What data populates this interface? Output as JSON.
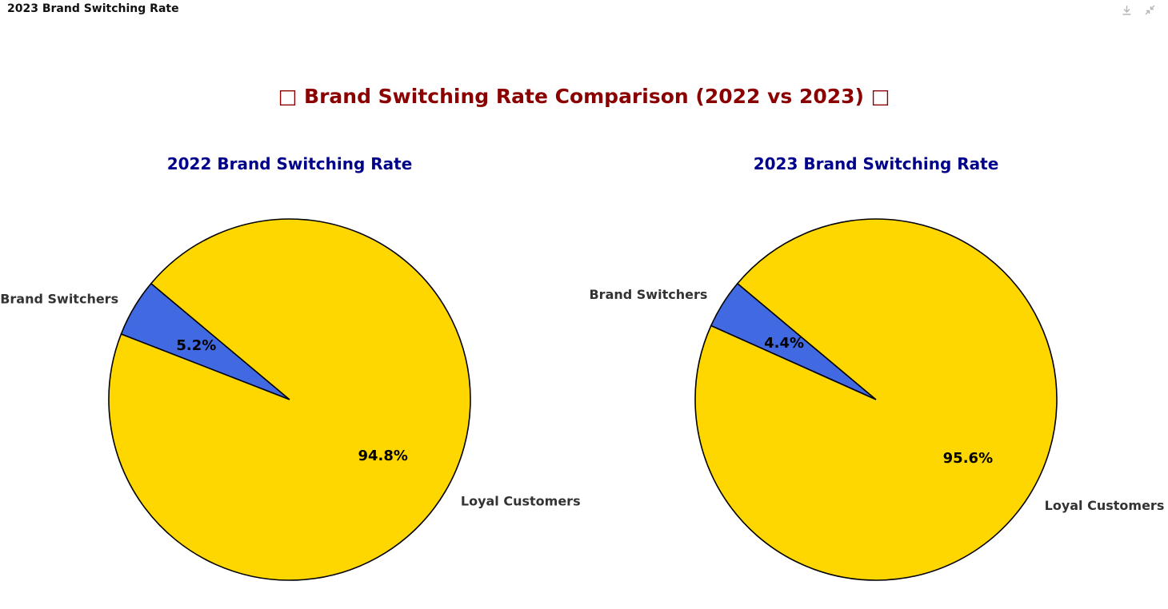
{
  "window": {
    "title": "2023 Brand Switching Rate",
    "tools": [
      {
        "name": "download-icon"
      },
      {
        "name": "collapse-icon"
      }
    ]
  },
  "colors": {
    "title": "#8b0000",
    "subtitle": "#00008b",
    "switchers": "#4169e1",
    "loyal": "#ffd700",
    "edge": "#000000",
    "label": "#333333",
    "pct": "#000000"
  },
  "chart_data": {
    "suptitle": "□ Brand Switching Rate Comparison (2022 vs 2023) □",
    "charts": [
      {
        "type": "pie",
        "title": "2022 Brand Switching Rate",
        "labels": [
          "Brand Switchers",
          "Loyal Customers"
        ],
        "values": [
          5.2,
          94.8
        ],
        "pct_labels": [
          "5.2%",
          "94.8%"
        ]
      },
      {
        "type": "pie",
        "title": "2023 Brand Switching Rate",
        "labels": [
          "Brand Switchers",
          "Loyal Customers"
        ],
        "values": [
          4.4,
          95.6
        ],
        "pct_labels": [
          "4.4%",
          "95.6%"
        ]
      }
    ]
  }
}
